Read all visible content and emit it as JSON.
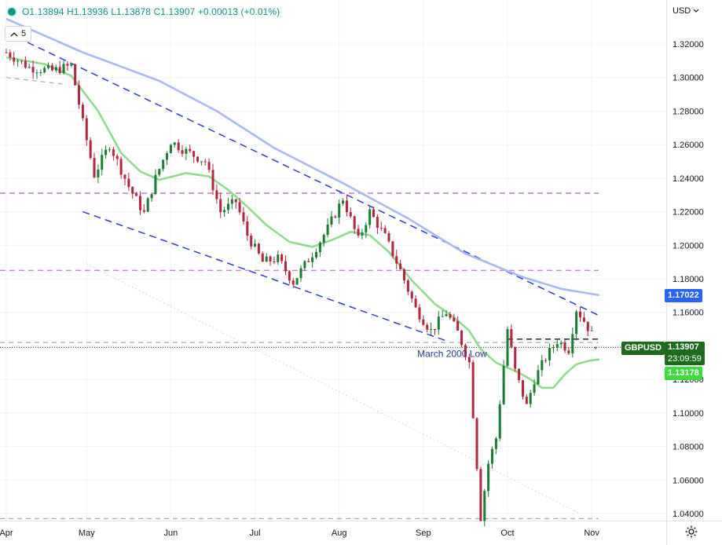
{
  "legend": {
    "open": "O1.13894",
    "high": "H1.13936",
    "low": "L1.13878",
    "close": "C1.13907",
    "change": "+0.00013 (+0.01%)"
  },
  "indicator_count": "5",
  "currency": "USD",
  "symbol": "GBPUSD",
  "last_price": "1.13907",
  "countdown": "23:09:59",
  "ma_long_value": "1.17022",
  "ma_short_value": "1.13178",
  "colors": {
    "up": "#089981",
    "down": "#c2185b",
    "candle_up": "#1b7d33",
    "candle_down": "#b2273f",
    "ma_long": "#a8b9f5",
    "ma_short": "#8fdc8f",
    "trend": "#2b3fd1",
    "purple": "#b34fc9"
  },
  "chart_data": {
    "type": "candlestick",
    "title": "",
    "ylim": [
      1.035,
      1.335
    ],
    "y_ticks": [
      1.04,
      1.06,
      1.08,
      1.1,
      1.12,
      1.14,
      1.16,
      1.18,
      1.2,
      1.22,
      1.24,
      1.26,
      1.28,
      1.3,
      1.32
    ],
    "y_tick_labels": [
      "1.04000",
      "1.06000",
      "1.08000",
      "1.10000",
      "1.12000",
      "1.14000",
      "1.16000",
      "1.18000",
      "1.20000",
      "1.22000",
      "1.24000",
      "1.26000",
      "1.28000",
      "1.30000",
      "1.32000"
    ],
    "x_labels": [
      "Apr",
      "May",
      "Jun",
      "Jul",
      "Aug",
      "Sep",
      "Oct",
      "Nov"
    ],
    "x_label_index": [
      0,
      21,
      43,
      65,
      87,
      109,
      131,
      153
    ],
    "bar_count": 155,
    "close_path": [
      [
        0,
        1.315
      ],
      [
        6,
        1.306
      ],
      [
        12,
        1.304
      ],
      [
        17,
        1.307
      ],
      [
        20,
        1.273
      ],
      [
        23,
        1.242
      ],
      [
        27,
        1.26
      ],
      [
        32,
        1.235
      ],
      [
        36,
        1.219
      ],
      [
        39,
        1.24
      ],
      [
        43,
        1.262
      ],
      [
        47,
        1.256
      ],
      [
        52,
        1.25
      ],
      [
        56,
        1.22
      ],
      [
        60,
        1.226
      ],
      [
        63,
        1.206
      ],
      [
        67,
        1.19
      ],
      [
        71,
        1.192
      ],
      [
        75,
        1.178
      ],
      [
        80,
        1.195
      ],
      [
        84,
        1.21
      ],
      [
        88,
        1.228
      ],
      [
        92,
        1.203
      ],
      [
        95,
        1.22
      ],
      [
        99,
        1.205
      ],
      [
        103,
        1.185
      ],
      [
        107,
        1.162
      ],
      [
        111,
        1.149
      ],
      [
        115,
        1.16
      ],
      [
        118,
        1.148
      ],
      [
        121,
        1.13
      ],
      [
        124,
        1.038
      ],
      [
        126,
        1.07
      ],
      [
        128,
        1.085
      ],
      [
        131,
        1.15
      ],
      [
        133,
        1.125
      ],
      [
        136,
        1.104
      ],
      [
        138,
        1.12
      ],
      [
        141,
        1.133
      ],
      [
        144,
        1.143
      ],
      [
        147,
        1.138
      ],
      [
        149,
        1.162
      ],
      [
        151,
        1.155
      ],
      [
        153,
        1.147
      ],
      [
        154,
        1.1391
      ]
    ],
    "series": [
      {
        "name": "",
        "style": "ma_long",
        "points": [
          [
            0,
            1.335
          ],
          [
            20,
            1.315
          ],
          [
            40,
            1.298
          ],
          [
            55,
            1.28
          ],
          [
            70,
            1.258
          ],
          [
            88,
            1.237
          ],
          [
            105,
            1.216
          ],
          [
            120,
            1.195
          ],
          [
            135,
            1.181
          ],
          [
            145,
            1.174
          ],
          [
            155,
            1.1702
          ]
        ]
      },
      {
        "name": "",
        "style": "ma_short",
        "points": [
          [
            0,
            1.312
          ],
          [
            10,
            1.308
          ],
          [
            17,
            1.301
          ],
          [
            24,
            1.28
          ],
          [
            30,
            1.255
          ],
          [
            35,
            1.244
          ],
          [
            40,
            1.239
          ],
          [
            47,
            1.243
          ],
          [
            53,
            1.241
          ],
          [
            58,
            1.233
          ],
          [
            63,
            1.223
          ],
          [
            68,
            1.212
          ],
          [
            74,
            1.202
          ],
          [
            80,
            1.199
          ],
          [
            85,
            1.203
          ],
          [
            90,
            1.208
          ],
          [
            95,
            1.206
          ],
          [
            100,
            1.196
          ],
          [
            106,
            1.179
          ],
          [
            112,
            1.165
          ],
          [
            117,
            1.157
          ],
          [
            121,
            1.149
          ],
          [
            124,
            1.138
          ],
          [
            128,
            1.13
          ],
          [
            131,
            1.127
          ],
          [
            134,
            1.124
          ],
          [
            137,
            1.12
          ],
          [
            140,
            1.115
          ],
          [
            143,
            1.115
          ],
          [
            146,
            1.123
          ],
          [
            149,
            1.129
          ],
          [
            152,
            1.131
          ],
          [
            155,
            1.132
          ]
        ]
      }
    ],
    "trendlines": [
      {
        "style": "blue-dash",
        "from": [
          0,
          1.327
        ],
        "to": [
          155,
          1.158
        ]
      },
      {
        "style": "blue-dash",
        "from": [
          20,
          1.22
        ],
        "to": [
          115,
          1.143
        ]
      },
      {
        "style": "grey-dash",
        "from": [
          0,
          1.3
        ],
        "to": [
          15,
          1.296
        ]
      }
    ],
    "horizontal_levels": [
      {
        "value": 1.231,
        "style": "purple-dash"
      },
      {
        "value": 1.185,
        "style": "purple-dash-light"
      },
      {
        "value": 1.142,
        "style": "grey-dash"
      },
      {
        "value": 1.037,
        "style": "grey-dash"
      }
    ],
    "resistance_segment": {
      "from": [
        131,
        1.144
      ],
      "to": [
        155,
        1.144
      ]
    },
    "annotation": {
      "text": "March 2000 Low",
      "index": 107,
      "value": 1.139
    }
  }
}
